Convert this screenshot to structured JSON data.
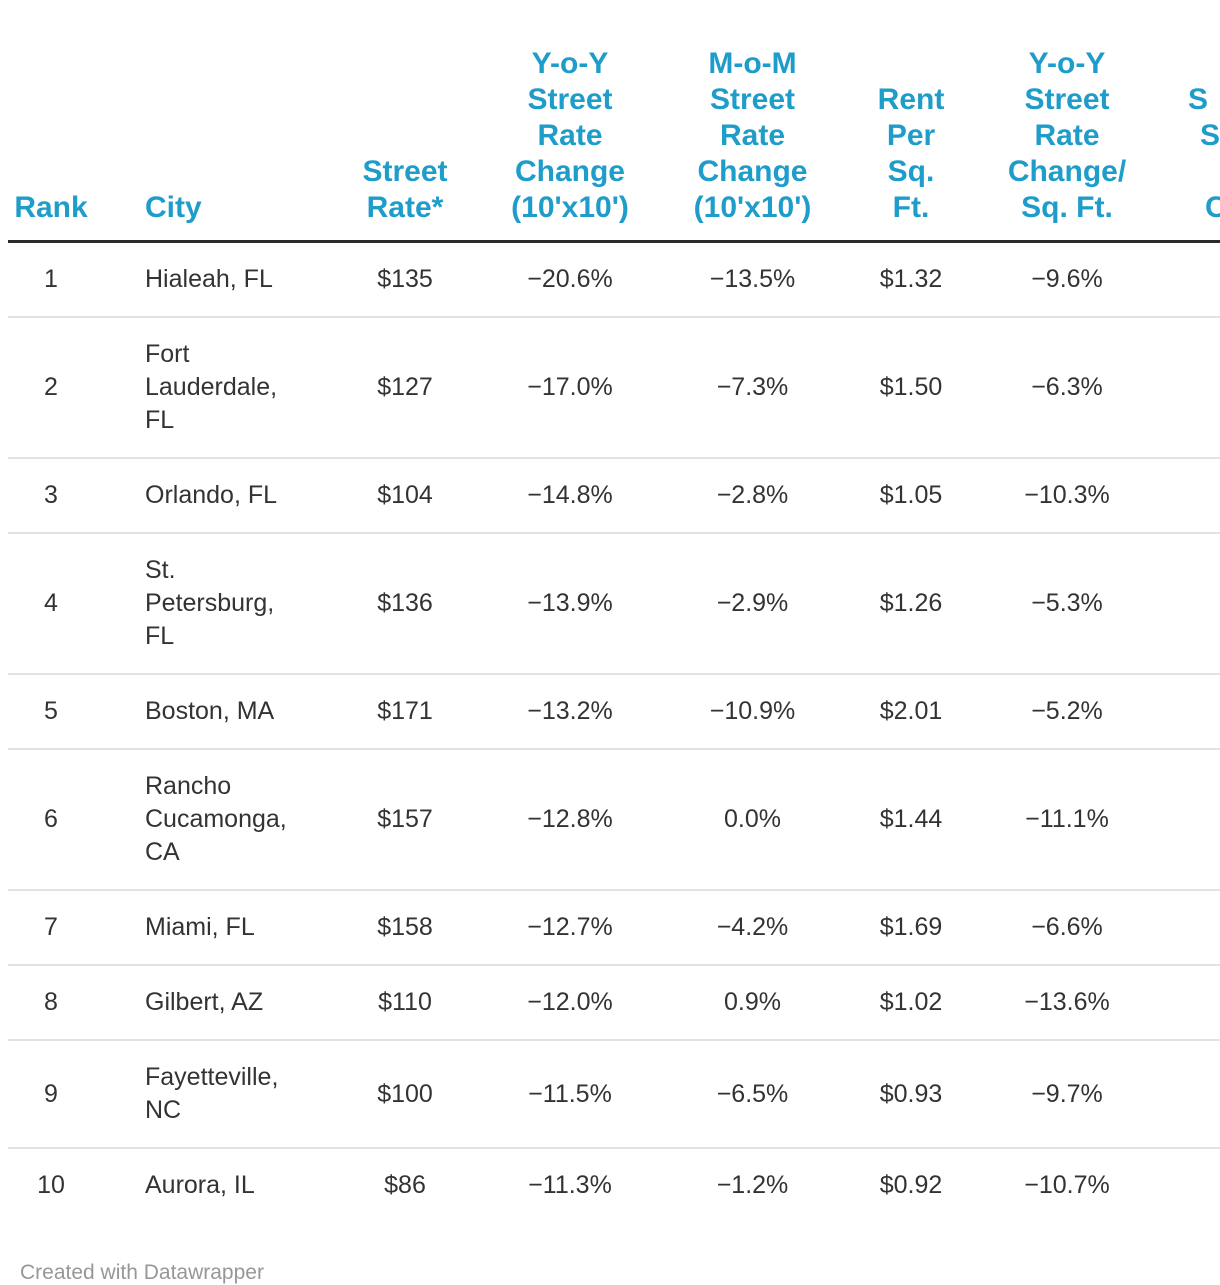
{
  "chart_data": {
    "type": "table",
    "columns": [
      "Rank",
      "City",
      "Street Rate*",
      "Y-o-Y Street Rate Change (10'x10')",
      "M-o-M Street Rate Change (10'x10')",
      "Rent Per Sq. Ft.",
      "Y-o-Y Street Rate Change/Sq. Ft."
    ],
    "rows": [
      [
        "1",
        "Hialeah, FL",
        "$135",
        "−20.6%",
        "−13.5%",
        "$1.32",
        "−9.6%"
      ],
      [
        "2",
        "Fort Lauderdale, FL",
        "$127",
        "−17.0%",
        "−7.3%",
        "$1.50",
        "−6.3%"
      ],
      [
        "3",
        "Orlando, FL",
        "$104",
        "−14.8%",
        "−2.8%",
        "$1.05",
        "−10.3%"
      ],
      [
        "4",
        "St. Petersburg, FL",
        "$136",
        "−13.9%",
        "−2.9%",
        "$1.26",
        "−5.3%"
      ],
      [
        "5",
        "Boston, MA",
        "$171",
        "−13.2%",
        "−10.9%",
        "$2.01",
        "−5.2%"
      ],
      [
        "6",
        "Rancho Cucamonga, CA",
        "$157",
        "−12.8%",
        "0.0%",
        "$1.44",
        "−11.1%"
      ],
      [
        "7",
        "Miami, FL",
        "$158",
        "−12.7%",
        "−4.2%",
        "$1.69",
        "−6.6%"
      ],
      [
        "8",
        "Gilbert, AZ",
        "$110",
        "−12.0%",
        "0.9%",
        "$1.02",
        "−13.6%"
      ],
      [
        "9",
        "Fayetteville, NC",
        "$100",
        "−11.5%",
        "−6.5%",
        "$0.93",
        "−9.7%"
      ],
      [
        "10",
        "Aurora, IL",
        "$86",
        "−11.3%",
        "−1.2%",
        "$0.92",
        "−10.7%"
      ]
    ],
    "clipped_last_column_visible_fragments": [
      "S",
      "S",
      "C"
    ],
    "layout": {
      "grid": "horizontal row separators only",
      "header_rule": "thick dark line under header"
    }
  },
  "display": {
    "headers": {
      "rank": "Rank",
      "city": "City",
      "street_rate": [
        "Street",
        "Rate*"
      ],
      "yoy": [
        "Y-o-Y",
        "Street",
        "Rate",
        "Change",
        "(10'x10')"
      ],
      "mom": [
        "M-o-M",
        "Street",
        "Rate",
        "Change",
        "(10'x10')"
      ],
      "rent": [
        "Rent",
        "Per",
        "Sq.",
        "Ft."
      ],
      "yoy_sqft": [
        "Y-o-Y",
        "Street",
        "Rate",
        "Change/",
        "Sq. Ft."
      ],
      "clipped": [
        "S",
        "S",
        "",
        "C"
      ]
    },
    "cities": [
      "Hialeah, FL",
      "Fort\nLauderdale,\nFL",
      "Orlando, FL",
      "St.\nPetersburg,\nFL",
      "Boston, MA",
      "Rancho\nCucamonga,\nCA",
      "Miami, FL",
      "Gilbert, AZ",
      "Fayetteville,\nNC",
      "Aurora, IL"
    ]
  },
  "footer": {
    "credit": "Created with Datawrapper"
  },
  "colors": {
    "header-text": "#1e9cca",
    "body-text": "#333333",
    "header-rule": "#2b2b2b",
    "row-separator": "#e2e2e2",
    "credit-text": "#979797",
    "background": "#ffffff"
  }
}
